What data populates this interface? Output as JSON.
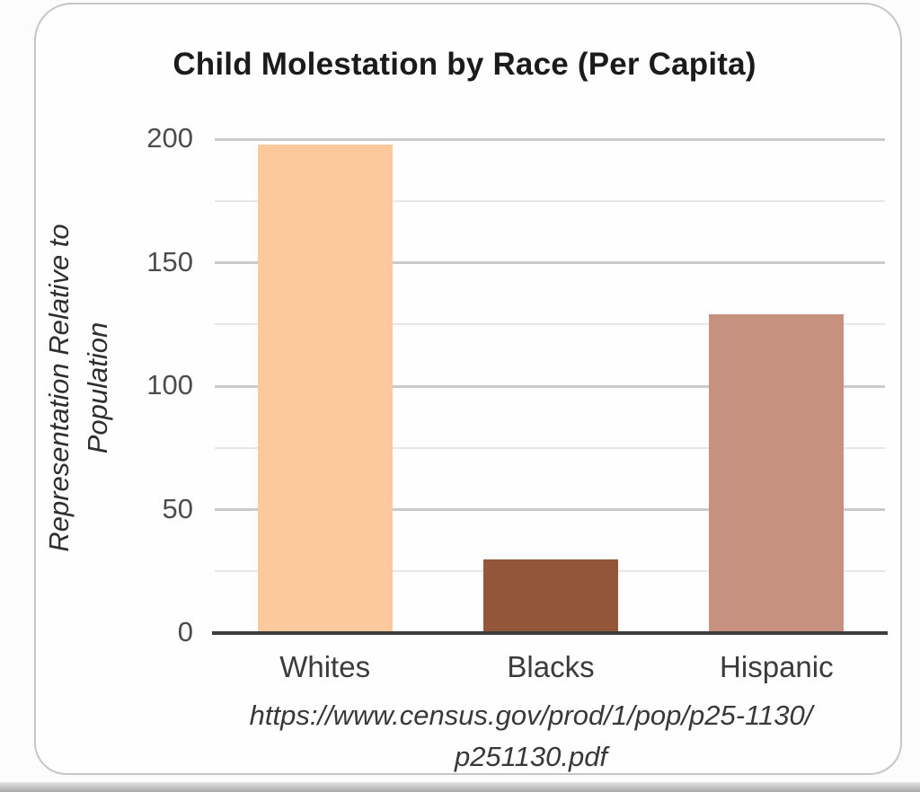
{
  "chart_data": {
    "type": "bar",
    "title": "Child Molestation by Race (Per Capita)",
    "ylabel": "Representation Relative to Population",
    "ylabel_lines": [
      "Representation Relative to",
      "Population"
    ],
    "categories": [
      "Whites",
      "Blacks",
      "Hispanic"
    ],
    "values": [
      198,
      30,
      129
    ],
    "bar_colors": [
      "#fcc99c",
      "#935639",
      "#c6917e"
    ],
    "ylim": [
      0,
      200
    ],
    "ytick_major": [
      0,
      50,
      100,
      150,
      200
    ],
    "ytick_minor": [
      25,
      75,
      125,
      175
    ],
    "grid": "horizontal-only",
    "legend": "none",
    "xlabel": "",
    "source_lines": [
      "https://www.census.gov/prod/1/pop/p25-1130/",
      "p251130.pdf"
    ]
  }
}
